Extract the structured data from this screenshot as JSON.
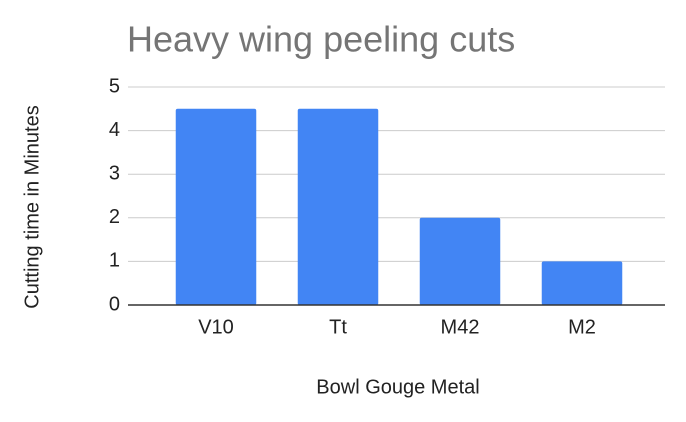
{
  "chart_data": {
    "type": "bar",
    "title": "Heavy wing peeling cuts",
    "x_label": "Bowl Gouge Metal",
    "y_label": "Cutting time in Minutes",
    "categories": [
      "V10",
      "Tt",
      "M42",
      "M2"
    ],
    "values": [
      4.5,
      4.5,
      2,
      1
    ],
    "color": "#4285f4",
    "ylim": [
      0,
      5
    ],
    "yticks": [
      0,
      1,
      2,
      3,
      4,
      5
    ],
    "grid": true
  }
}
